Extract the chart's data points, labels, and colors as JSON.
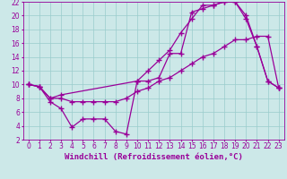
{
  "bg_color": "#cce8e8",
  "grid_color": "#99cccc",
  "line_color": "#990099",
  "marker": "+",
  "markersize": 4,
  "linewidth": 0.9,
  "markeredgewidth": 1.0,
  "xlabel": "Windchill (Refroidissement éolien,°C)",
  "xlabel_fontsize": 6.5,
  "tick_fontsize": 5.5,
  "xlim": [
    -0.5,
    23.5
  ],
  "ylim": [
    2,
    22
  ],
  "xticks": [
    0,
    1,
    2,
    3,
    4,
    5,
    6,
    7,
    8,
    9,
    10,
    11,
    12,
    13,
    14,
    15,
    16,
    17,
    18,
    19,
    20,
    21,
    22,
    23
  ],
  "yticks": [
    2,
    4,
    6,
    8,
    10,
    12,
    14,
    16,
    18,
    20,
    22
  ],
  "series1_x": [
    0,
    1,
    2,
    3,
    4,
    5,
    6,
    7,
    8,
    9,
    10,
    11,
    12,
    13,
    14,
    15,
    16,
    17,
    18,
    19,
    20,
    21,
    22,
    23
  ],
  "series1_y": [
    10,
    9.7,
    7.5,
    6.5,
    3.8,
    5.0,
    5.0,
    5.0,
    3.2,
    2.8,
    10.5,
    10.5,
    11.0,
    14.5,
    14.5,
    20.5,
    21.0,
    21.5,
    22.0,
    22.0,
    19.5,
    15.5,
    10.5,
    9.5
  ],
  "series2_x": [
    0,
    1,
    2,
    3,
    4,
    5,
    6,
    7,
    8,
    9,
    10,
    11,
    12,
    13,
    14,
    15,
    16,
    17,
    18,
    19,
    20,
    21,
    22,
    23
  ],
  "series2_y": [
    10,
    9.7,
    8.0,
    8.0,
    7.5,
    7.5,
    7.5,
    7.5,
    7.5,
    8.0,
    9.0,
    9.5,
    10.5,
    11.0,
    12.0,
    13.0,
    14.0,
    14.5,
    15.5,
    16.5,
    16.5,
    17.0,
    17.0,
    9.5
  ],
  "series3_x": [
    0,
    1,
    2,
    3,
    10,
    11,
    12,
    13,
    14,
    15,
    16,
    17,
    18,
    19,
    20,
    21,
    22,
    23
  ],
  "series3_y": [
    10,
    9.7,
    8.0,
    8.5,
    10.5,
    12.0,
    13.5,
    15.0,
    17.5,
    19.5,
    21.5,
    21.5,
    22.0,
    22.0,
    20.0,
    15.5,
    10.5,
    9.5
  ]
}
